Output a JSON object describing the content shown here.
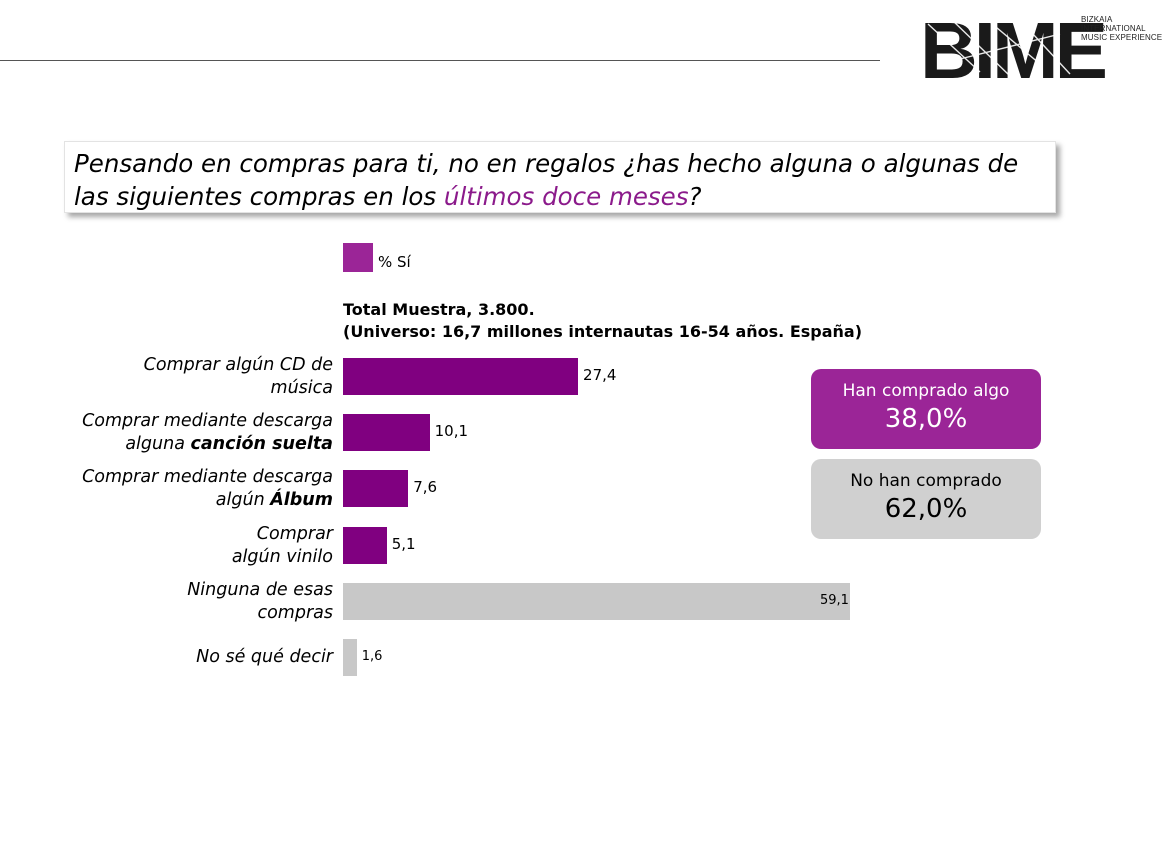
{
  "logo": {
    "brand": "BIME",
    "tagline": [
      "BIZKAIA",
      "INTERNATIONAL",
      "MUSIC EXPERIENCE"
    ]
  },
  "question": {
    "part1": "Pensando en compras para ti, no en regalos ¿has hecho alguna o algunas de las siguientes compras en los ",
    "highlight": "últimos doce meses",
    "part2": "?"
  },
  "legend": {
    "label": "% Sí",
    "color": "#9b2597"
  },
  "sample": {
    "line1": "Total Muestra, 3.800.",
    "line2": "(Universo: 16,7 millones internautas 16-54 años. España)"
  },
  "chart_data": {
    "type": "bar",
    "orientation": "horizontal",
    "categories": [
      "Comprar algún CD de música",
      "Comprar mediante descarga alguna canción suelta",
      "Comprar mediante descarga algún Álbum",
      "Comprar algún vinilo",
      "Ninguna de esas compras",
      "No sé qué decir"
    ],
    "category_labels": [
      {
        "lines": [
          [
            "Comprar algún CD de",
            ""
          ],
          [
            "música",
            ""
          ]
        ]
      },
      {
        "lines": [
          [
            "Comprar mediante descarga",
            ""
          ],
          [
            "alguna ",
            "canción suelta"
          ]
        ]
      },
      {
        "lines": [
          [
            "Comprar mediante descarga",
            ""
          ],
          [
            "algún ",
            "Álbum"
          ]
        ]
      },
      {
        "lines": [
          [
            "Comprar",
            ""
          ],
          [
            "algún vinilo",
            ""
          ]
        ]
      },
      {
        "lines": [
          [
            "Ninguna de esas",
            ""
          ],
          [
            "compras",
            ""
          ]
        ]
      },
      {
        "lines": [
          [
            "No sé qué decir",
            ""
          ]
        ]
      }
    ],
    "values": [
      27.4,
      10.1,
      7.6,
      5.1,
      59.1,
      1.6
    ],
    "value_labels": [
      "27,4",
      "10,1",
      "7,6",
      "5,1",
      "59,1",
      "1,6"
    ],
    "bar_colors": [
      "#800080",
      "#800080",
      "#800080",
      "#800080",
      "#c8c8c8",
      "#c8c8c8"
    ],
    "series": [
      {
        "name": "% Sí",
        "values": [
          27.4,
          10.1,
          7.6,
          5.1,
          59.1,
          1.6
        ]
      }
    ],
    "xlim": [
      0,
      100
    ],
    "grid": false,
    "legend_position": "top"
  },
  "summary": {
    "bought": {
      "label": "Han comprado algo",
      "value": "38,0%",
      "color": "#9b2597"
    },
    "not_bought": {
      "label": "No han comprado",
      "value": "62,0%",
      "color": "#d0d0d0"
    }
  }
}
